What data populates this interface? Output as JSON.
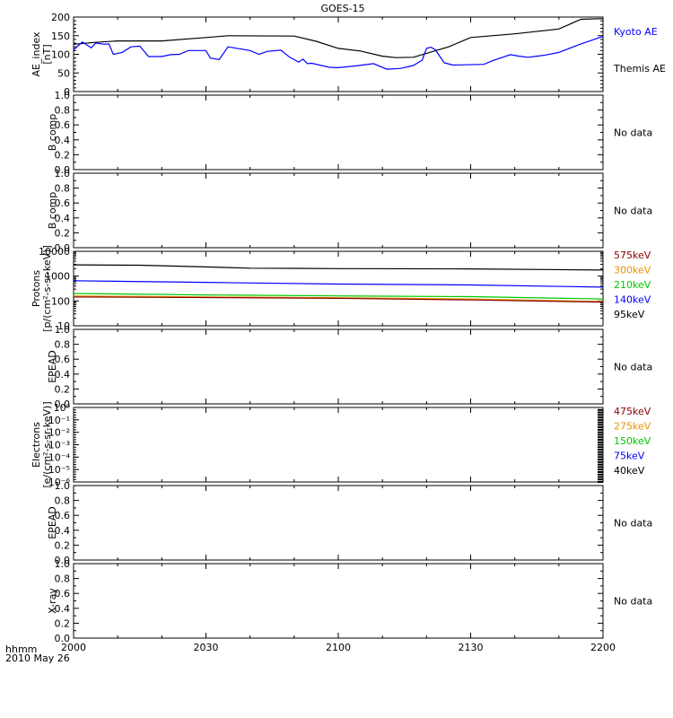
{
  "title": "GOES-15",
  "time_axis": {
    "unit_label": "hhmm",
    "date_label": "2010 May 26",
    "ticks": [
      "2000",
      "2030",
      "2100",
      "2130",
      "2200"
    ]
  },
  "panels": [
    {
      "id": "ae",
      "ylabel": [
        "AE_index",
        "[nT]"
      ],
      "yticks": [
        "0",
        "50",
        "100",
        "150",
        "200"
      ],
      "legend": [
        {
          "text": "Kyoto AE",
          "color": "#0000ff"
        },
        {
          "text": "Themis AE",
          "color": "#000000"
        }
      ]
    },
    {
      "id": "bcomp1",
      "ylabel": [
        "B comp"
      ],
      "yticks": [
        "0.0",
        "0.2",
        "0.4",
        "0.6",
        "0.8",
        "1.0"
      ],
      "nodata": "No data"
    },
    {
      "id": "bcomp2",
      "ylabel": [
        "B comp"
      ],
      "yticks": [
        "0.0",
        "0.2",
        "0.4",
        "0.6",
        "0.8",
        "1.0"
      ],
      "nodata": "No data"
    },
    {
      "id": "protons",
      "ylabel": [
        "Protons",
        "[p/(cm²-s-sr-keV)]"
      ],
      "yticks": [
        "10",
        "100",
        "1000",
        "10000"
      ],
      "legend": [
        {
          "text": "575keV",
          "color": "#8b0000"
        },
        {
          "text": "300keV",
          "color": "#e69500"
        },
        {
          "text": "210keV",
          "color": "#00c800"
        },
        {
          "text": "140keV",
          "color": "#0000ff"
        },
        {
          "text": "95keV",
          "color": "#000000"
        }
      ]
    },
    {
      "id": "epead1",
      "ylabel": [
        "EPEAD"
      ],
      "yticks": [
        "0.0",
        "0.2",
        "0.4",
        "0.6",
        "0.8",
        "1.0"
      ],
      "nodata": "No data"
    },
    {
      "id": "electrons",
      "ylabel": [
        "Electrons",
        "[e/(cm²-s-sr-keV)]"
      ],
      "yticks": [
        "10⁻⁶",
        "10⁻⁵",
        "10⁻⁴",
        "10⁻³",
        "10⁻²",
        "10⁻¹",
        "10⁰"
      ],
      "legend": [
        {
          "text": "475keV",
          "color": "#8b0000"
        },
        {
          "text": "275keV",
          "color": "#e69500"
        },
        {
          "text": "150keV",
          "color": "#00c800"
        },
        {
          "text": "75keV",
          "color": "#0000ff"
        },
        {
          "text": "40keV",
          "color": "#000000"
        }
      ]
    },
    {
      "id": "epead2",
      "ylabel": [
        "EPEAD"
      ],
      "yticks": [
        "0.0",
        "0.2",
        "0.4",
        "0.6",
        "0.8",
        "1.0"
      ],
      "nodata": "No data"
    },
    {
      "id": "xray",
      "ylabel": [
        "X-ray"
      ],
      "yticks": [
        "0.0",
        "0.2",
        "0.4",
        "0.6",
        "0.8",
        "1.0"
      ],
      "nodata": "No data"
    }
  ],
  "chart_data": {
    "type": "line",
    "x_range": [
      "2000",
      "2200"
    ],
    "ae": {
      "ylim": [
        0,
        200
      ],
      "series": [
        {
          "name": "Themis AE",
          "color": "#000000",
          "points": [
            [
              "2000",
              127
            ],
            [
              "2005",
              132
            ],
            [
              "2010",
              136
            ],
            [
              "2020",
              136
            ],
            [
              "2030",
              145
            ],
            [
              "2035",
              150
            ],
            [
              "2050",
              149
            ],
            [
              "2055",
              135
            ],
            [
              "2100",
              116
            ],
            [
              "2105",
              109
            ],
            [
              "2110",
              95
            ],
            [
              "2113",
              91
            ],
            [
              "2117",
              92
            ],
            [
              "2125",
              120
            ],
            [
              "2130",
              145
            ],
            [
              "2140",
              155
            ],
            [
              "2150",
              168
            ],
            [
              "2155",
              194
            ],
            [
              "2200",
              196
            ]
          ]
        },
        {
          "name": "Kyoto AE",
          "color": "#0000ff",
          "points": [
            [
              "2000",
              112
            ],
            [
              "2002",
              133
            ],
            [
              "2004",
              117
            ],
            [
              "2005",
              130
            ],
            [
              "2007",
              127
            ],
            [
              "2008",
              128
            ],
            [
              "2009",
              100
            ],
            [
              "2011",
              105
            ],
            [
              "2013",
              120
            ],
            [
              "2015",
              122
            ],
            [
              "2017",
              94
            ],
            [
              "2020",
              94
            ],
            [
              "2022",
              99
            ],
            [
              "2024",
              100
            ],
            [
              "2026",
              110
            ],
            [
              "2030",
              110
            ],
            [
              "2031",
              90
            ],
            [
              "2033",
              86
            ],
            [
              "2035",
              120
            ],
            [
              "2040",
              110
            ],
            [
              "2042",
              100
            ],
            [
              "2044",
              108
            ],
            [
              "2047",
              111
            ],
            [
              "2049",
              92
            ],
            [
              "2051",
              79
            ],
            [
              "2052",
              87
            ],
            [
              "2053",
              75
            ],
            [
              "2054",
              76
            ],
            [
              "2058",
              65
            ],
            [
              "2100",
              64
            ],
            [
              "2104",
              69
            ],
            [
              "2108",
              75
            ],
            [
              "2111",
              60
            ],
            [
              "2114",
              62
            ],
            [
              "2117",
              70
            ],
            [
              "2119",
              84
            ],
            [
              "2120",
              116
            ],
            [
              "2121",
              119
            ],
            [
              "2122",
              112
            ],
            [
              "2124",
              77
            ],
            [
              "2126",
              71
            ],
            [
              "2133",
              73
            ],
            [
              "2135",
              83
            ],
            [
              "2139",
              99
            ],
            [
              "2141",
              95
            ],
            [
              "2143",
              92
            ],
            [
              "2145",
              95
            ],
            [
              "2147",
              98
            ],
            [
              "2150",
              105
            ],
            [
              "2155",
              128
            ],
            [
              "2200",
              148
            ]
          ]
        }
      ]
    },
    "protons": {
      "ylim": [
        10,
        10000
      ],
      "yscale": "log",
      "series": [
        {
          "name": "95keV",
          "color": "#000000",
          "points": [
            [
              "2000",
              2850
            ],
            [
              "2015",
              2750
            ],
            [
              "2030",
              2350
            ],
            [
              "2040",
              2100
            ],
            [
              "2050",
              2050
            ],
            [
              "2100",
              2000
            ],
            [
              "2130",
              1950
            ],
            [
              "2200",
              1750
            ]
          ]
        },
        {
          "name": "140keV",
          "color": "#0000ff",
          "points": [
            [
              "2000",
              650
            ],
            [
              "2030",
              560
            ],
            [
              "2100",
              480
            ],
            [
              "2130",
              440
            ],
            [
              "2200",
              360
            ]
          ]
        },
        {
          "name": "210keV",
          "color": "#00c800",
          "points": [
            [
              "2000",
              200
            ],
            [
              "2030",
              175
            ],
            [
              "2100",
              160
            ],
            [
              "2130",
              150
            ],
            [
              "2200",
              120
            ]
          ]
        },
        {
          "name": "300keV",
          "color": "#e69500",
          "points": [
            [
              "2000",
              160
            ],
            [
              "2030",
              145
            ],
            [
              "2100",
              135
            ],
            [
              "2130",
              120
            ],
            [
              "2200",
              95
            ]
          ]
        },
        {
          "name": "575keV",
          "color": "#8b0000",
          "points": [
            [
              "2000",
              145
            ],
            [
              "2030",
              138
            ],
            [
              "2100",
              128
            ],
            [
              "2130",
              110
            ],
            [
              "2200",
              90
            ]
          ]
        }
      ]
    }
  }
}
